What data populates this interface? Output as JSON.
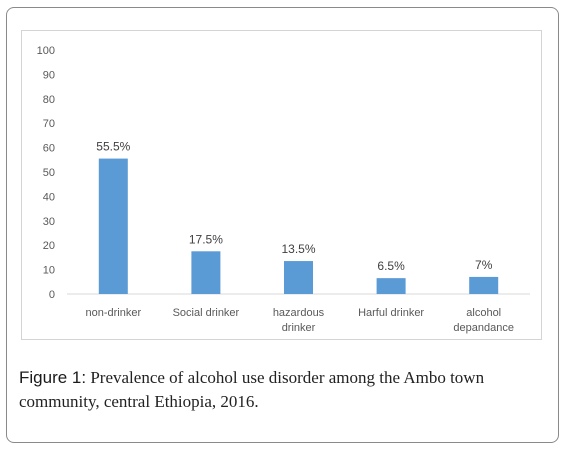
{
  "chart_data": {
    "type": "bar",
    "categories": [
      [
        "non-drinker"
      ],
      [
        "Social drinker"
      ],
      [
        "hazardous",
        "drinker"
      ],
      [
        "Harful drinker"
      ],
      [
        "alcohol",
        "depandance"
      ]
    ],
    "values": [
      55.5,
      17.5,
      13.5,
      6.5,
      7
    ],
    "data_labels": [
      "55.5%",
      "17.5%",
      "13.5%",
      "6.5%",
      "7%"
    ],
    "ylim": [
      0,
      100
    ],
    "yticks": [
      "0",
      "10",
      "20",
      "30",
      "40",
      "50",
      "60",
      "70",
      "80",
      "90",
      "100"
    ],
    "bar_color": "#5b9bd5",
    "grid": false,
    "title": "",
    "xlabel": "",
    "ylabel": ""
  },
  "caption": {
    "label": "Figure 1:",
    "text": " Prevalence of alcohol use disorder among the Ambo town community, central Ethiopia, 2016."
  }
}
